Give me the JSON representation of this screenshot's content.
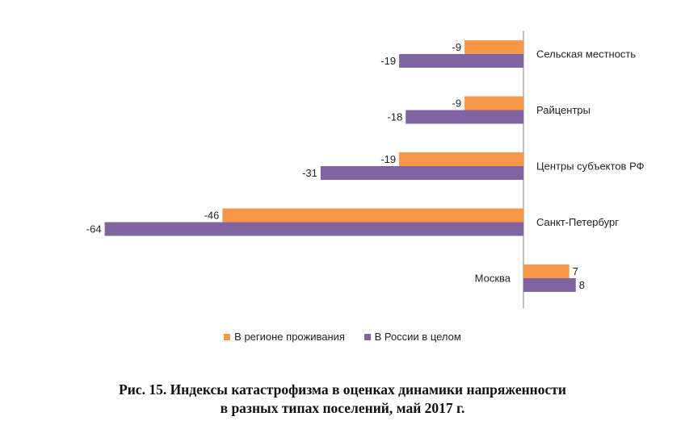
{
  "chart_data": {
    "type": "bar",
    "orientation": "horizontal",
    "categories": [
      "Сельская местность",
      "Райцентры",
      "Центры субъектов РФ",
      "Санкт-Петербург",
      "Москва"
    ],
    "series": [
      {
        "name": "В регионе проживания",
        "values": [
          -9,
          -9,
          -19,
          -46,
          7
        ],
        "color": "#f79646"
      },
      {
        "name": "В России в целом",
        "values": [
          -19,
          -18,
          -31,
          -64,
          8
        ],
        "color": "#8064a2"
      }
    ],
    "value_labels": [
      [
        "-9",
        "-9",
        "-19",
        "-46",
        "7"
      ],
      [
        "-19",
        "-18",
        "-31",
        "-64",
        "8"
      ]
    ],
    "grid": false,
    "legend_position": "bottom"
  },
  "legend": {
    "items": [
      {
        "label": "В регионе проживания",
        "color": "#f79646"
      },
      {
        "label": "В России в целом",
        "color": "#8064a2"
      }
    ]
  },
  "caption": {
    "line1": "Рис. 15. Индексы катастрофизма в оценках динамики напряженности",
    "line2": "в разных типах поселений, май 2017  г."
  }
}
